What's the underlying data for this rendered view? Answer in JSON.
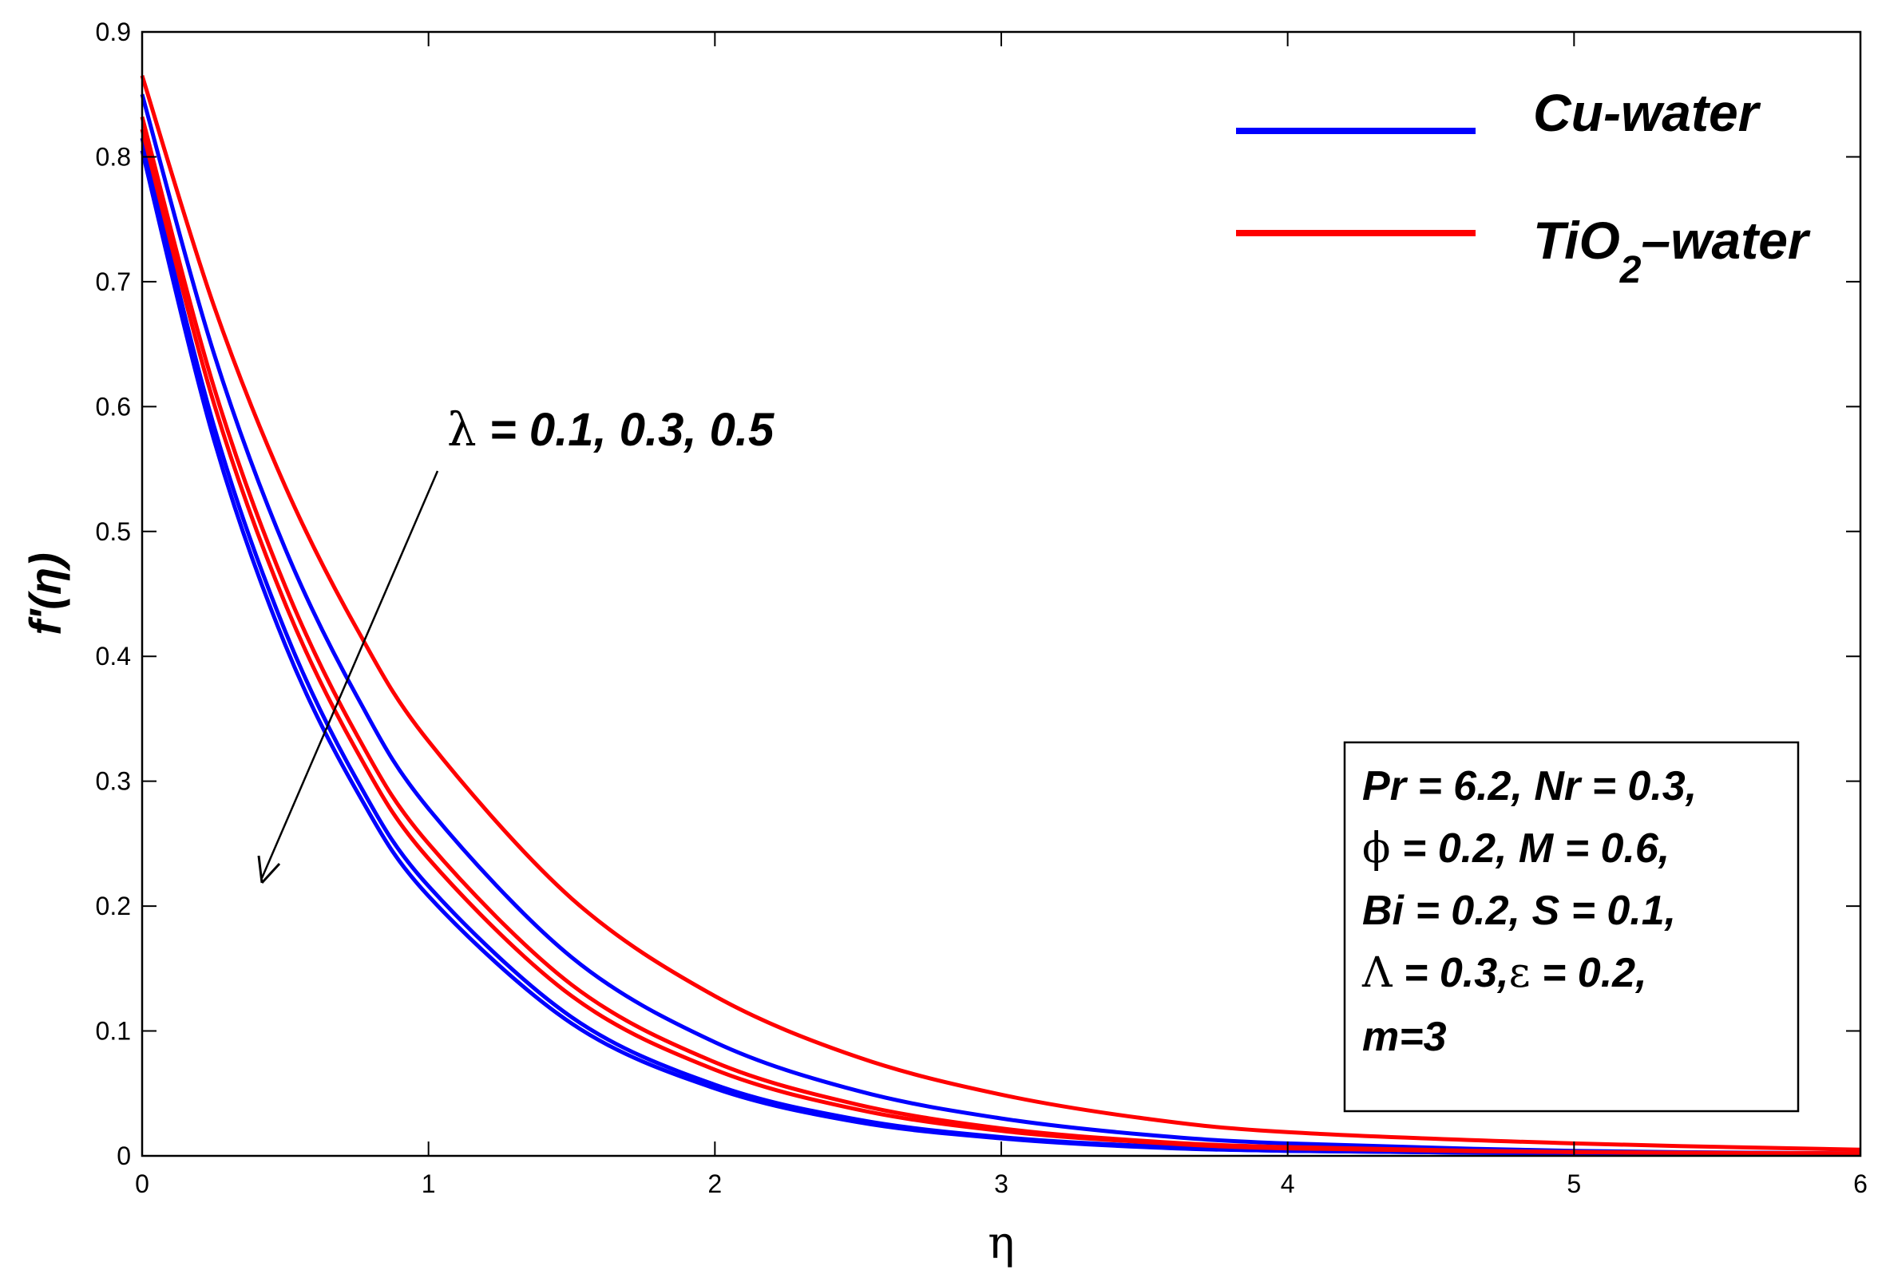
{
  "chart_data": {
    "type": "line",
    "title": "",
    "xlabel": "η",
    "ylabel": "f'(η)",
    "xlim": [
      0,
      6
    ],
    "ylim": [
      0,
      0.9
    ],
    "xticks": [
      "0",
      "1",
      "2",
      "3",
      "4",
      "5",
      "6"
    ],
    "yticks": [
      "0",
      "0.1",
      "0.2",
      "0.3",
      "0.4",
      "0.5",
      "0.6",
      "0.7",
      "0.8",
      "0.9"
    ],
    "grid": false,
    "legend_position": "top-right",
    "legend": [
      {
        "name": "Cu-water",
        "color": "#0000ff"
      },
      {
        "name": "TiO2-water",
        "color": "#ff0000",
        "base": "TiO",
        "sub": "2",
        "suffix": "–water"
      }
    ],
    "x": [
      0,
      0.25,
      0.5,
      0.75,
      1.0,
      1.5,
      2.0,
      2.5,
      3.0,
      3.5,
      4.0,
      5.0,
      6.0
    ],
    "series": [
      {
        "name": "Cu-water λ=0.1",
        "color": "#0000ff",
        "values": [
          0.85,
          0.643,
          0.486,
          0.368,
          0.278,
          0.159,
          0.091,
          0.052,
          0.03,
          0.017,
          0.01,
          0.004,
          0.002
        ]
      },
      {
        "name": "Cu-water λ=0.3",
        "color": "#0000ff",
        "values": [
          0.815,
          0.585,
          0.42,
          0.301,
          0.216,
          0.111,
          0.057,
          0.029,
          0.015,
          0.008,
          0.004,
          0.002,
          0.001
        ]
      },
      {
        "name": "Cu-water λ=0.5",
        "color": "#0000ff",
        "values": [
          0.805,
          0.574,
          0.409,
          0.292,
          0.208,
          0.106,
          0.054,
          0.027,
          0.014,
          0.007,
          0.004,
          0.002,
          0.001
        ]
      },
      {
        "name": "TiO2-water λ=0.1",
        "color": "#ff0000",
        "values": [
          0.865,
          0.681,
          0.536,
          0.422,
          0.332,
          0.206,
          0.128,
          0.079,
          0.049,
          0.03,
          0.019,
          0.01,
          0.005
        ]
      },
      {
        "name": "TiO2-water λ=0.3",
        "color": "#ff0000",
        "values": [
          0.832,
          0.616,
          0.456,
          0.337,
          0.25,
          0.137,
          0.075,
          0.041,
          0.022,
          0.012,
          0.007,
          0.003,
          0.002
        ]
      },
      {
        "name": "TiO2-water λ=0.5",
        "color": "#ff0000",
        "values": [
          0.822,
          0.603,
          0.442,
          0.324,
          0.238,
          0.128,
          0.069,
          0.037,
          0.02,
          0.011,
          0.006,
          0.003,
          0.002
        ]
      }
    ],
    "annotations": {
      "lambda": {
        "symbol": "λ",
        "text": " = 0.1, 0.3, 0.5"
      },
      "params": [
        {
          "text": "Pr = 6.2, Nr = 0.3,"
        },
        {
          "symbol": "ϕ",
          "text": " = 0.2, M = 0.6,"
        },
        {
          "text": "Bi = 0.2, S = 0.1,"
        },
        {
          "symbol": "Λ",
          "text": " = 0.3,",
          "symbol2": "ε",
          "text2": " = 0.2,"
        },
        {
          "text": "m=3"
        }
      ]
    }
  }
}
